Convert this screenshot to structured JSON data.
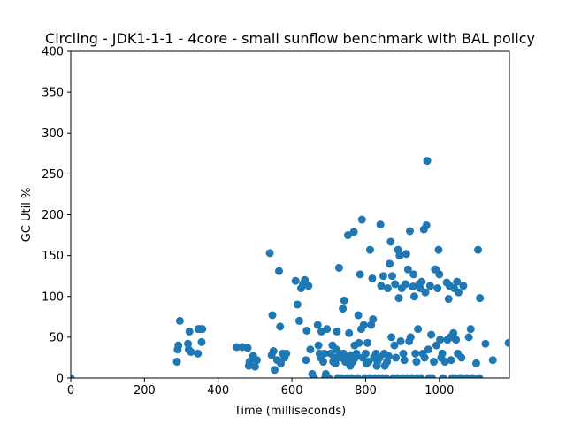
{
  "chart_data": {
    "type": "scatter",
    "title": "Circling - JDK1-1-1 - 4core -  small sunflow benchmark with BAL policy",
    "xlabel": "Time (milliseconds)",
    "ylabel": "GC Util %",
    "xlim": [
      0,
      1190
    ],
    "ylim": [
      0,
      400
    ],
    "xticks": [
      0,
      200,
      400,
      600,
      800,
      1000
    ],
    "yticks": [
      0,
      50,
      100,
      150,
      200,
      250,
      300,
      350,
      400
    ],
    "grid": false,
    "legend": "none",
    "marker_color": "#1f77b4",
    "points": [
      [
        0,
        0
      ],
      [
        288,
        20
      ],
      [
        290,
        35
      ],
      [
        292,
        40
      ],
      [
        296,
        70
      ],
      [
        318,
        42
      ],
      [
        320,
        35
      ],
      [
        322,
        57
      ],
      [
        326,
        32
      ],
      [
        345,
        30
      ],
      [
        346,
        60
      ],
      [
        350,
        60
      ],
      [
        355,
        44
      ],
      [
        357,
        60
      ],
      [
        450,
        38
      ],
      [
        465,
        38
      ],
      [
        480,
        37
      ],
      [
        483,
        15
      ],
      [
        485,
        20
      ],
      [
        495,
        27
      ],
      [
        500,
        14
      ],
      [
        505,
        22
      ],
      [
        540,
        153
      ],
      [
        545,
        28
      ],
      [
        547,
        77
      ],
      [
        550,
        33
      ],
      [
        553,
        10
      ],
      [
        560,
        22
      ],
      [
        565,
        131
      ],
      [
        568,
        63
      ],
      [
        570,
        18
      ],
      [
        575,
        30
      ],
      [
        580,
        25
      ],
      [
        585,
        30
      ],
      [
        610,
        119
      ],
      [
        615,
        90
      ],
      [
        620,
        70
      ],
      [
        625,
        110
      ],
      [
        630,
        115
      ],
      [
        635,
        120
      ],
      [
        638,
        22
      ],
      [
        640,
        58
      ],
      [
        645,
        113
      ],
      [
        650,
        35
      ],
      [
        655,
        5
      ],
      [
        660,
        0
      ],
      [
        670,
        65
      ],
      [
        672,
        40
      ],
      [
        675,
        30
      ],
      [
        678,
        25
      ],
      [
        680,
        57
      ],
      [
        685,
        20
      ],
      [
        688,
        30
      ],
      [
        690,
        0
      ],
      [
        692,
        5
      ],
      [
        695,
        60
      ],
      [
        700,
        0
      ],
      [
        705,
        30
      ],
      [
        710,
        40
      ],
      [
        712,
        20
      ],
      [
        715,
        25
      ],
      [
        718,
        18
      ],
      [
        720,
        35
      ],
      [
        722,
        57
      ],
      [
        725,
        0
      ],
      [
        728,
        135
      ],
      [
        730,
        30
      ],
      [
        732,
        25
      ],
      [
        735,
        0
      ],
      [
        738,
        85
      ],
      [
        740,
        30
      ],
      [
        742,
        95
      ],
      [
        745,
        20
      ],
      [
        748,
        25
      ],
      [
        750,
        0
      ],
      [
        752,
        175
      ],
      [
        755,
        55
      ],
      [
        758,
        15
      ],
      [
        760,
        28
      ],
      [
        762,
        0
      ],
      [
        765,
        20
      ],
      [
        768,
        179
      ],
      [
        770,
        40
      ],
      [
        772,
        25
      ],
      [
        775,
        30
      ],
      [
        778,
        0
      ],
      [
        780,
        77
      ],
      [
        782,
        43
      ],
      [
        785,
        127
      ],
      [
        788,
        60
      ],
      [
        790,
        194
      ],
      [
        792,
        25
      ],
      [
        795,
        65
      ],
      [
        798,
        0
      ],
      [
        800,
        30
      ],
      [
        802,
        18
      ],
      [
        805,
        43
      ],
      [
        808,
        20
      ],
      [
        810,
        0
      ],
      [
        812,
        157
      ],
      [
        815,
        65
      ],
      [
        818,
        122
      ],
      [
        820,
        72
      ],
      [
        822,
        25
      ],
      [
        825,
        0
      ],
      [
        828,
        30
      ],
      [
        830,
        15
      ],
      [
        832,
        20
      ],
      [
        835,
        0
      ],
      [
        838,
        25
      ],
      [
        840,
        188
      ],
      [
        842,
        113
      ],
      [
        845,
        0
      ],
      [
        848,
        125
      ],
      [
        850,
        30
      ],
      [
        852,
        15
      ],
      [
        855,
        0
      ],
      [
        858,
        20
      ],
      [
        860,
        110
      ],
      [
        862,
        27
      ],
      [
        865,
        140
      ],
      [
        868,
        167
      ],
      [
        870,
        50
      ],
      [
        872,
        125
      ],
      [
        875,
        0
      ],
      [
        878,
        40
      ],
      [
        880,
        115
      ],
      [
        882,
        25
      ],
      [
        885,
        0
      ],
      [
        888,
        157
      ],
      [
        890,
        98
      ],
      [
        892,
        150
      ],
      [
        895,
        45
      ],
      [
        898,
        110
      ],
      [
        900,
        0
      ],
      [
        902,
        30
      ],
      [
        905,
        22
      ],
      [
        908,
        115
      ],
      [
        910,
        152
      ],
      [
        912,
        0
      ],
      [
        915,
        133
      ],
      [
        918,
        45
      ],
      [
        920,
        180
      ],
      [
        922,
        50
      ],
      [
        925,
        0
      ],
      [
        928,
        112
      ],
      [
        930,
        127
      ],
      [
        932,
        100
      ],
      [
        935,
        30
      ],
      [
        938,
        20
      ],
      [
        940,
        0
      ],
      [
        942,
        60
      ],
      [
        945,
        115
      ],
      [
        948,
        110
      ],
      [
        950,
        0
      ],
      [
        952,
        118
      ],
      [
        955,
        30
      ],
      [
        958,
        182
      ],
      [
        960,
        25
      ],
      [
        962,
        105
      ],
      [
        965,
        187
      ],
      [
        967,
        266
      ],
      [
        970,
        35
      ],
      [
        972,
        0
      ],
      [
        975,
        113
      ],
      [
        978,
        53
      ],
      [
        980,
        0
      ],
      [
        985,
        20
      ],
      [
        988,
        133
      ],
      [
        990,
        133
      ],
      [
        992,
        40
      ],
      [
        995,
        110
      ],
      [
        998,
        157
      ],
      [
        1000,
        127
      ],
      [
        1002,
        47
      ],
      [
        1005,
        25
      ],
      [
        1008,
        30
      ],
      [
        1010,
        0
      ],
      [
        1015,
        20
      ],
      [
        1020,
        117
      ],
      [
        1022,
        47
      ],
      [
        1025,
        97
      ],
      [
        1028,
        113
      ],
      [
        1030,
        50
      ],
      [
        1032,
        22
      ],
      [
        1035,
        0
      ],
      [
        1038,
        55
      ],
      [
        1040,
        110
      ],
      [
        1042,
        0
      ],
      [
        1045,
        47
      ],
      [
        1048,
        118
      ],
      [
        1050,
        30
      ],
      [
        1052,
        105
      ],
      [
        1055,
        0
      ],
      [
        1058,
        0
      ],
      [
        1060,
        25
      ],
      [
        1065,
        113
      ],
      [
        1075,
        0
      ],
      [
        1080,
        50
      ],
      [
        1085,
        60
      ],
      [
        1090,
        0
      ],
      [
        1100,
        18
      ],
      [
        1105,
        157
      ],
      [
        1108,
        0
      ],
      [
        1110,
        98
      ],
      [
        1125,
        42
      ],
      [
        1145,
        22
      ],
      [
        1188,
        43
      ]
    ]
  }
}
